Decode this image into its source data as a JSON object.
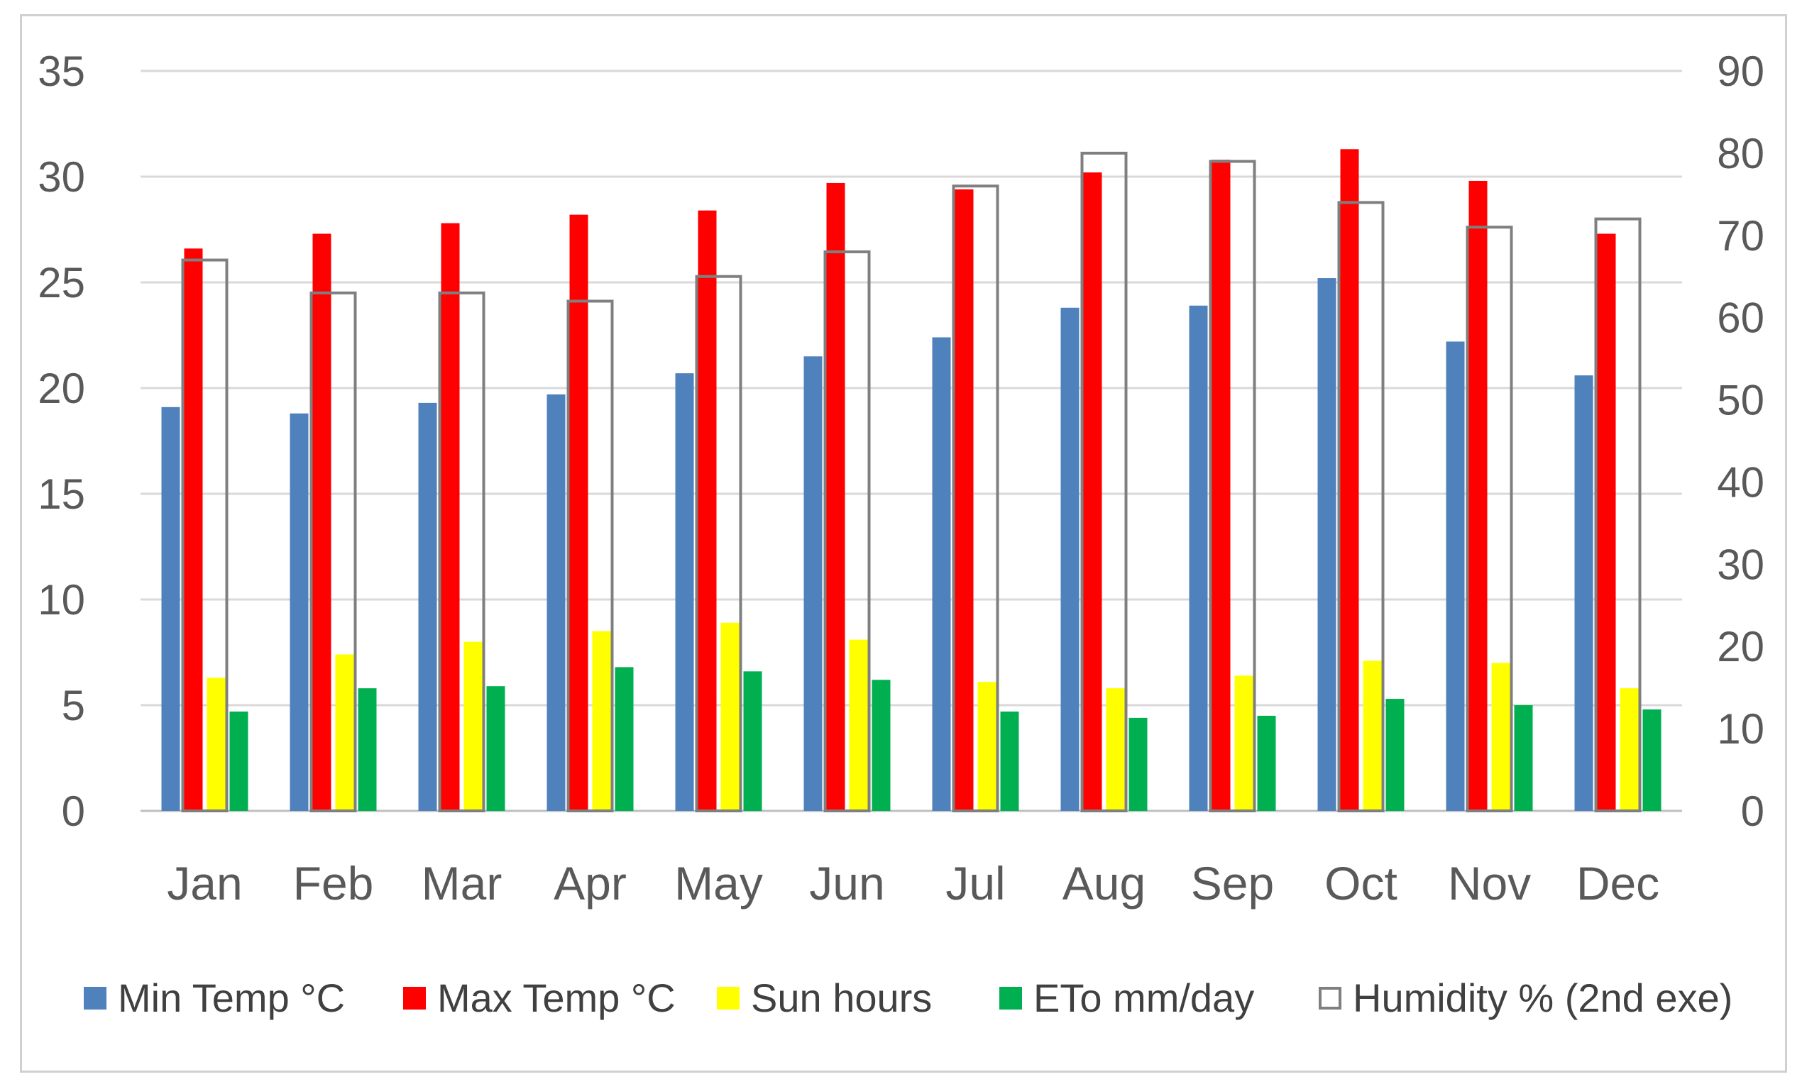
{
  "chart_data": {
    "type": "bar",
    "categories": [
      "Jan",
      "Feb",
      "Mar",
      "Apr",
      "May",
      "Jun",
      "Jul",
      "Aug",
      "Sep",
      "Oct",
      "Nov",
      "Dec"
    ],
    "y_left": {
      "min": 0,
      "max": 35,
      "step": 5,
      "ticks": [
        "0",
        "5",
        "10",
        "15",
        "20",
        "25",
        "30",
        "35"
      ]
    },
    "y_right": {
      "min": 0,
      "max": 90,
      "step": 10,
      "ticks": [
        "0",
        "10",
        "20",
        "30",
        "40",
        "50",
        "60",
        "70",
        "80",
        "90"
      ]
    },
    "grid": true,
    "legend_position": "bottom",
    "series": [
      {
        "name": "Min Temp °C",
        "color": "#4f81bd",
        "axis": "left",
        "values": [
          19.1,
          18.8,
          19.3,
          19.7,
          20.7,
          21.5,
          22.4,
          23.8,
          23.9,
          25.2,
          22.2,
          20.6
        ]
      },
      {
        "name": "Max Temp °C",
        "color": "#ff0000",
        "axis": "left",
        "values": [
          26.6,
          27.3,
          27.8,
          28.2,
          28.4,
          29.7,
          29.4,
          30.2,
          30.8,
          31.3,
          29.8,
          27.3
        ]
      },
      {
        "name": "Sun hours",
        "color": "#ffff00",
        "axis": "left",
        "values": [
          6.3,
          7.4,
          8.0,
          8.5,
          8.9,
          8.1,
          6.1,
          5.8,
          6.4,
          7.1,
          7.0,
          5.8
        ]
      },
      {
        "name": "ETo mm/day",
        "color": "#00b050",
        "axis": "left",
        "values": [
          4.7,
          5.8,
          5.9,
          6.8,
          6.6,
          6.2,
          4.7,
          4.4,
          4.5,
          5.3,
          5.0,
          4.8
        ]
      },
      {
        "name": "Humidity % (2nd exe)",
        "color": "#7f7f7f",
        "axis": "right",
        "style": "outline",
        "values": [
          67,
          63,
          63,
          62,
          65,
          68,
          76,
          80,
          79,
          74,
          71,
          72
        ]
      }
    ]
  }
}
